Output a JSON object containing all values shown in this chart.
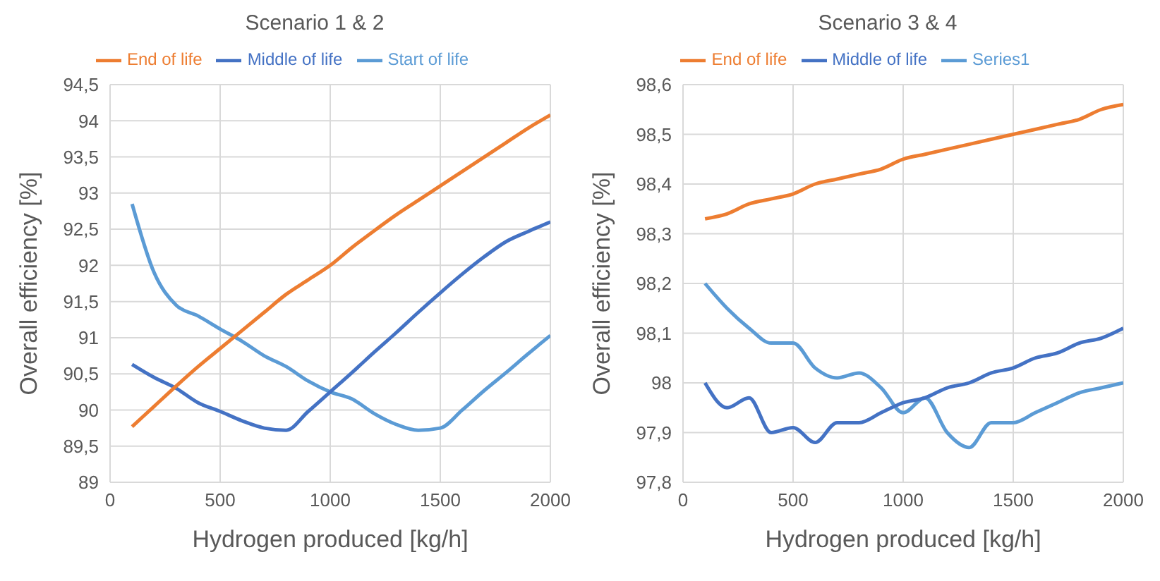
{
  "chart_data": [
    {
      "type": "line",
      "title": "Scenario 1 & 2",
      "xlabel": "Hydrogen produced [kg/h]",
      "ylabel": "Overall efficiency [%]",
      "x": [
        100,
        200,
        300,
        400,
        500,
        600,
        700,
        800,
        900,
        1000,
        1100,
        1200,
        1300,
        1400,
        1500,
        1600,
        1700,
        1800,
        1900,
        2000
      ],
      "series": [
        {
          "name": "Start of life",
          "color": "#5b9bd5",
          "values": [
            92.85,
            91.9,
            91.45,
            91.3,
            91.12,
            90.95,
            90.75,
            90.6,
            90.4,
            90.25,
            90.15,
            89.95,
            89.8,
            89.72,
            89.75,
            90.0,
            90.27,
            90.52,
            90.78,
            91.03
          ]
        },
        {
          "name": "Middle of life",
          "color": "#4472c4",
          "values": [
            90.63,
            90.45,
            90.3,
            90.1,
            89.98,
            89.85,
            89.75,
            89.72,
            89.98,
            90.25,
            90.52,
            90.8,
            91.07,
            91.35,
            91.62,
            91.88,
            92.12,
            92.33,
            92.47,
            92.6
          ]
        },
        {
          "name": "End of life",
          "color": "#ed7d31",
          "values": [
            89.77,
            90.05,
            90.33,
            90.6,
            90.85,
            91.1,
            91.35,
            91.6,
            91.8,
            92.0,
            92.25,
            92.48,
            92.7,
            92.9,
            93.1,
            93.3,
            93.5,
            93.7,
            93.9,
            94.08
          ]
        }
      ],
      "xlim": [
        0,
        2000
      ],
      "xticks": [
        0,
        500,
        1000,
        1500,
        2000
      ],
      "ylim": [
        89,
        94.5
      ],
      "yticks": [
        89,
        {
          "value": 89.5,
          "label": "89,5"
        },
        90,
        {
          "value": 90.5,
          "label": "90,5"
        },
        91,
        {
          "value": 91.5,
          "label": "91,5"
        },
        92,
        {
          "value": 92.5,
          "label": "92,5"
        },
        93,
        {
          "value": 93.5,
          "label": "93,5"
        },
        94,
        {
          "value": 94.5,
          "label": "94,5"
        }
      ],
      "grid": true,
      "legend": "top",
      "marker": "none",
      "line_style": "solid"
    },
    {
      "type": "line",
      "title": "Scenario 3 & 4",
      "xlabel": "Hydrogen produced [kg/h]",
      "ylabel": "Overall efficiency [%]",
      "x": [
        100,
        200,
        300,
        400,
        500,
        600,
        700,
        800,
        900,
        1000,
        1100,
        1200,
        1300,
        1400,
        1500,
        1600,
        1700,
        1800,
        1900,
        2000
      ],
      "series": [
        {
          "name": "Series1",
          "color": "#5b9bd5",
          "values": [
            98.2,
            98.15,
            98.11,
            98.08,
            98.08,
            98.03,
            98.01,
            98.02,
            97.99,
            97.94,
            97.97,
            97.9,
            97.87,
            97.92,
            97.92,
            97.94,
            97.96,
            97.98,
            97.99,
            98.0
          ]
        },
        {
          "name": "Middle of life",
          "color": "#4472c4",
          "values": [
            98.0,
            97.95,
            97.97,
            97.9,
            97.91,
            97.88,
            97.92,
            97.92,
            97.94,
            97.96,
            97.97,
            97.99,
            98.0,
            98.02,
            98.03,
            98.05,
            98.06,
            98.08,
            98.09,
            98.11
          ]
        },
        {
          "name": "End of life",
          "color": "#ed7d31",
          "values": [
            98.33,
            98.34,
            98.36,
            98.37,
            98.38,
            98.4,
            98.41,
            98.42,
            98.43,
            98.45,
            98.46,
            98.47,
            98.48,
            98.49,
            98.5,
            98.51,
            98.52,
            98.53,
            98.55,
            98.56
          ]
        }
      ],
      "xlim": [
        0,
        2000
      ],
      "xticks": [
        0,
        500,
        1000,
        1500,
        2000
      ],
      "ylim": [
        97.8,
        98.6
      ],
      "yticks": [
        {
          "value": 97.8,
          "label": "97,8"
        },
        {
          "value": 97.9,
          "label": "97,9"
        },
        98,
        {
          "value": 98.1,
          "label": "98,1"
        },
        {
          "value": 98.2,
          "label": "98,2"
        },
        {
          "value": 98.3,
          "label": "98,3"
        },
        {
          "value": 98.4,
          "label": "98,4"
        },
        {
          "value": 98.5,
          "label": "98,5"
        },
        {
          "value": 98.6,
          "label": "98,6"
        }
      ],
      "grid": true,
      "legend": "top",
      "marker": "none",
      "line_style": "solid"
    }
  ]
}
